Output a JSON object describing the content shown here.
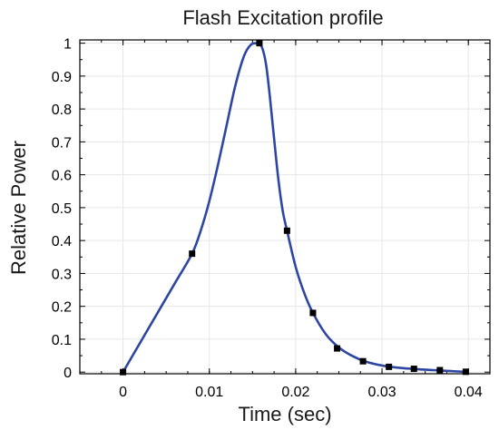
{
  "chart_data": {
    "type": "line",
    "title": "Flash Excitation profile",
    "xlabel": "Time (sec)",
    "ylabel": "Relative Power",
    "xlim": [
      -0.005,
      0.0425
    ],
    "ylim": [
      -0.005,
      1.01
    ],
    "x_ticks": [
      0,
      0.01,
      0.02,
      0.03,
      0.04
    ],
    "x_tick_labels": [
      "0",
      "0.01",
      "0.02",
      "0.03",
      "0.04"
    ],
    "y_ticks": [
      0,
      0.1,
      0.2,
      0.3,
      0.4,
      0.5,
      0.6,
      0.7,
      0.8,
      0.9,
      1
    ],
    "y_tick_labels": [
      "0",
      "0.1",
      "0.2",
      "0.3",
      "0.4",
      "0.5",
      "0.6",
      "0.7",
      "0.8",
      "0.9",
      "1"
    ],
    "grid": true,
    "line_color": "#2e46a3",
    "marker_color": "#000000",
    "series": [
      {
        "curve": {
          "x": [
            0,
            0.002,
            0.004,
            0.006,
            0.008,
            0.009,
            0.01,
            0.011,
            0.012,
            0.013,
            0.014,
            0.0148,
            0.0154,
            0.0158,
            0.0162,
            0.0166,
            0.017,
            0.0175,
            0.018,
            0.0185,
            0.019,
            0.02,
            0.021,
            0.022,
            0.0235,
            0.025,
            0.0265,
            0.028,
            0.03,
            0.032,
            0.034,
            0.036,
            0.038,
            0.0395
          ],
          "y": [
            0,
            0.09,
            0.18,
            0.27,
            0.36,
            0.43,
            0.52,
            0.63,
            0.75,
            0.87,
            0.96,
            0.995,
            1.0,
            1.0,
            0.98,
            0.93,
            0.84,
            0.71,
            0.585,
            0.49,
            0.43,
            0.32,
            0.24,
            0.18,
            0.115,
            0.075,
            0.05,
            0.033,
            0.02,
            0.013,
            0.009,
            0.006,
            0.003,
            0.001
          ]
        },
        "markers": {
          "x": [
            0,
            0.008,
            0.0158,
            0.019,
            0.022,
            0.0248,
            0.0278,
            0.0308,
            0.0337,
            0.0367,
            0.0397
          ],
          "y": [
            0,
            0.36,
            1.0,
            0.43,
            0.18,
            0.072,
            0.033,
            0.016,
            0.01,
            0.006,
            0.001
          ]
        }
      }
    ]
  }
}
